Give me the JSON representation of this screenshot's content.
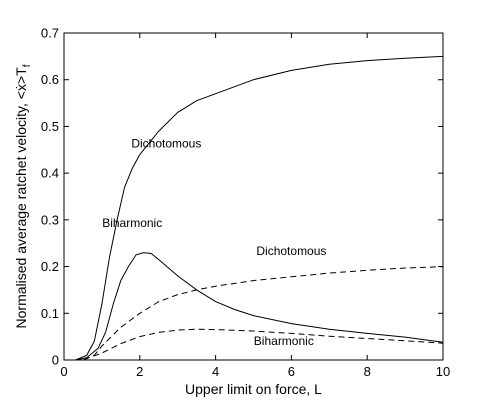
{
  "chart_data": {
    "type": "line",
    "xlabel": "Upper limit on force, L",
    "ylabel": "Normalised average ratchet velocity, <ẋ>T",
    "ylabel_subscript": "f",
    "xlim": [
      0,
      10
    ],
    "ylim": [
      0,
      0.7
    ],
    "x_ticks": [
      "0",
      "2",
      "4",
      "6",
      "8",
      "10"
    ],
    "y_ticks": [
      "0",
      "0.1",
      "0.2",
      "0.3",
      "0.4",
      "0.5",
      "0.6",
      "0.7"
    ],
    "grid": false,
    "legend": "none",
    "series": [
      {
        "name": "Dichotomous",
        "style": "solid",
        "color": "#000000",
        "x": [
          0.3,
          0.6,
          0.8,
          1.0,
          1.2,
          1.4,
          1.6,
          1.8,
          2.0,
          2.5,
          3.0,
          3.5,
          4.0,
          4.5,
          5.0,
          6.0,
          7.0,
          8.0,
          9.0,
          10.0
        ],
        "y": [
          0.0,
          0.01,
          0.04,
          0.12,
          0.22,
          0.3,
          0.37,
          0.41,
          0.44,
          0.49,
          0.53,
          0.555,
          0.57,
          0.585,
          0.6,
          0.62,
          0.633,
          0.641,
          0.646,
          0.65
        ]
      },
      {
        "name": "Biharmonic",
        "style": "solid",
        "color": "#000000",
        "x": [
          0.3,
          0.6,
          0.9,
          1.1,
          1.3,
          1.5,
          1.7,
          1.9,
          2.1,
          2.3,
          2.5,
          3.0,
          3.5,
          4.0,
          4.5,
          5.0,
          6.0,
          7.0,
          8.0,
          9.0,
          10.0
        ],
        "y": [
          0.0,
          0.005,
          0.025,
          0.06,
          0.12,
          0.17,
          0.2,
          0.225,
          0.23,
          0.228,
          0.215,
          0.18,
          0.15,
          0.125,
          0.108,
          0.095,
          0.078,
          0.066,
          0.057,
          0.049,
          0.038
        ]
      },
      {
        "name": "Dichotomous",
        "style": "dashed",
        "color": "#000000",
        "x": [
          0.0,
          0.5,
          0.8,
          1.0,
          1.5,
          2.0,
          2.5,
          3.0,
          3.5,
          4.0,
          5.0,
          6.0,
          7.0,
          8.0,
          9.0,
          10.0
        ],
        "y": [
          0.0,
          0.0,
          0.01,
          0.03,
          0.07,
          0.1,
          0.125,
          0.14,
          0.15,
          0.158,
          0.17,
          0.178,
          0.186,
          0.192,
          0.197,
          0.2
        ]
      },
      {
        "name": "Biharmonic",
        "style": "dashed",
        "color": "#000000",
        "x": [
          0.0,
          0.5,
          1.0,
          1.5,
          2.0,
          2.5,
          3.0,
          3.5,
          4.0,
          5.0,
          6.0,
          7.0,
          8.0,
          9.0,
          10.0
        ],
        "y": [
          0.0,
          0.0,
          0.015,
          0.035,
          0.05,
          0.059,
          0.064,
          0.066,
          0.065,
          0.062,
          0.057,
          0.051,
          0.046,
          0.041,
          0.036
        ]
      }
    ],
    "annotations": [
      {
        "text": "Dichotomous",
        "x": 2.7,
        "y": 0.455
      },
      {
        "text": "Biharmonic",
        "x": 1.8,
        "y": 0.285
      },
      {
        "text": "Dichotomous",
        "x": 6.0,
        "y": 0.225
      },
      {
        "text": "Biharmonic",
        "x": 5.8,
        "y": 0.032
      }
    ]
  }
}
